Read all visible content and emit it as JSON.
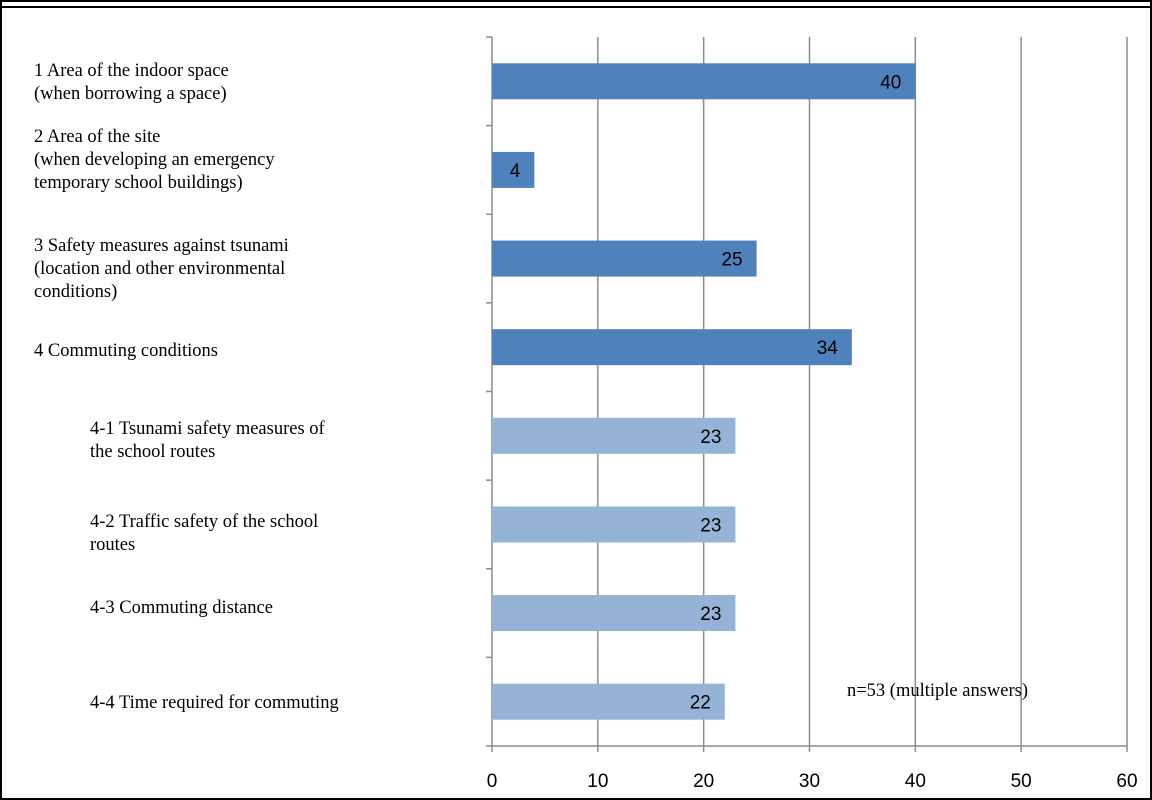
{
  "chart_data": {
    "type": "bar",
    "orientation": "horizontal",
    "categories": [
      "1 Area of the indoor space\n  (when borrowing a space)",
      "2 Area of the site\n  (when developing an emergency\n  temporary school buildings)",
      "3 Safety measures against tsunami\n  (location and other environmental\n  conditions)",
      "4 Commuting conditions",
      "4-1 Tsunami safety measures of\n     the school routes",
      "4-2 Traffic safety of the school\n     routes",
      "4-3 Commuting distance",
      "4-4 Time required for commuting"
    ],
    "values": [
      40,
      4,
      25,
      34,
      23,
      23,
      23,
      22
    ],
    "bar_colors": [
      "#4f81bd",
      "#4f81bd",
      "#4f81bd",
      "#4f81bd",
      "#95b3d7",
      "#95b3d7",
      "#95b3d7",
      "#95b3d7"
    ],
    "xlim": [
      0,
      60
    ],
    "xticks": [
      0,
      10,
      20,
      30,
      40,
      50,
      60
    ],
    "grid": true,
    "data_labels": true,
    "annotation": "n=53 (multiple answers)"
  }
}
